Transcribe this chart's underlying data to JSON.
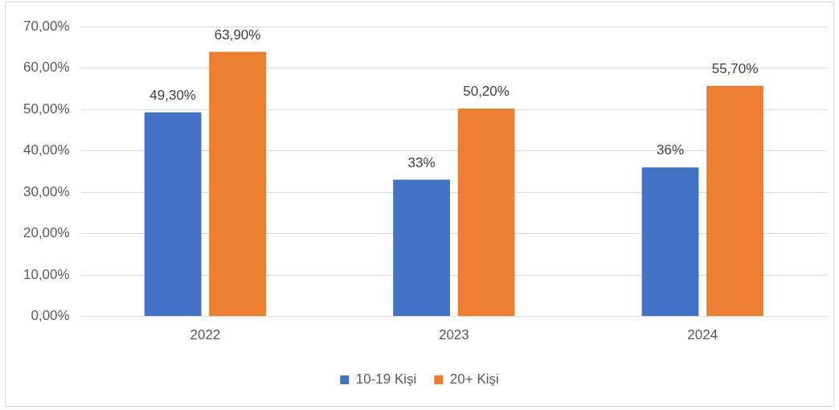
{
  "chart_data": {
    "type": "bar",
    "categories": [
      "2022",
      "2023",
      "2024"
    ],
    "series": [
      {
        "name": "10-19 Kişi",
        "color": "#4472c4",
        "values": [
          49.3,
          33,
          36
        ],
        "value_labels": [
          "49,30%",
          "33%",
          "36%"
        ]
      },
      {
        "name": "20+ Kişi",
        "color": "#ed7d31",
        "values": [
          63.9,
          50.2,
          55.7
        ],
        "value_labels": [
          "63,90%",
          "50,20%",
          "55,70%"
        ]
      }
    ],
    "ylim": [
      0,
      70
    ],
    "yticks": [
      {
        "value": 0,
        "label": "0,00%"
      },
      {
        "value": 10,
        "label": "10,00%"
      },
      {
        "value": 20,
        "label": "20,00%"
      },
      {
        "value": 30,
        "label": "30,00%"
      },
      {
        "value": 40,
        "label": "40,00%"
      },
      {
        "value": 50,
        "label": "50,00%"
      },
      {
        "value": 60,
        "label": "60,00%"
      },
      {
        "value": 70,
        "label": "70,00%"
      }
    ],
    "grid": "y",
    "legend": "bottom"
  }
}
